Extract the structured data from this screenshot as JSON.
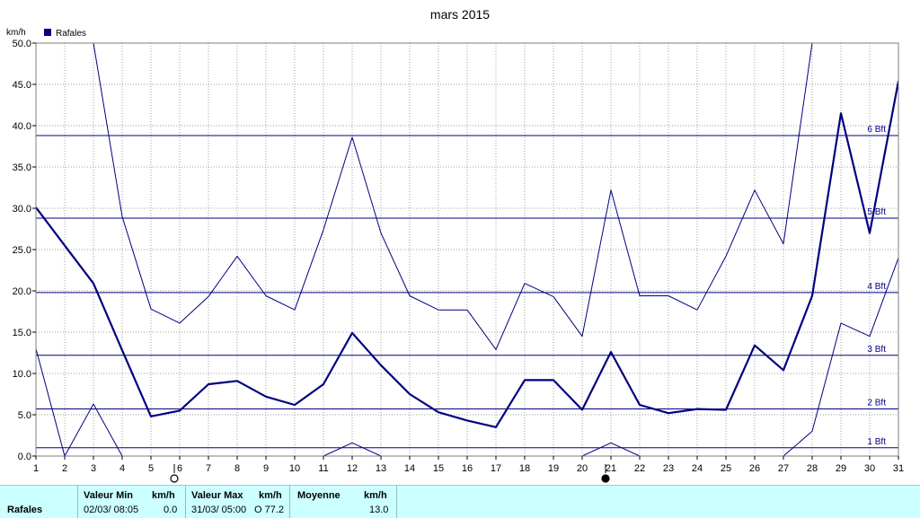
{
  "chart_data": {
    "type": "line",
    "title": "mars 2015",
    "ylabel": "km/h",
    "ylim": [
      0,
      50
    ],
    "yticks": [
      "0.0",
      "5.0",
      "10.0",
      "15.0",
      "20.0",
      "25.0",
      "30.0",
      "35.0",
      "40.0",
      "45.0",
      "50.0"
    ],
    "x": [
      1,
      2,
      3,
      4,
      5,
      6,
      7,
      8,
      9,
      10,
      11,
      12,
      13,
      14,
      15,
      16,
      17,
      18,
      19,
      20,
      21,
      22,
      23,
      24,
      25,
      26,
      27,
      28,
      29,
      30,
      31
    ],
    "legend": {
      "label": "Rafales",
      "position": "top-left",
      "color": "#000080"
    },
    "series": [
      {
        "name": "Rafales",
        "values": [
          30.1,
          25.5,
          20.9,
          12.8,
          4.8,
          5.5,
          8.7,
          9.1,
          7.2,
          6.2,
          8.7,
          14.9,
          11.0,
          7.5,
          5.3,
          4.3,
          3.5,
          9.2,
          9.2,
          5.6,
          12.6,
          6.2,
          5.2,
          5.7,
          5.6,
          13.4,
          10.4,
          19.4,
          41.5,
          27.0,
          45.4
        ]
      },
      {
        "values": [
          13.0,
          0.0,
          6.3,
          0.0,
          null,
          null,
          null,
          null,
          null,
          null,
          0.0,
          1.6,
          0.0,
          null,
          null,
          null,
          null,
          null,
          null,
          0.0,
          1.6,
          0.0,
          null,
          null,
          null,
          null,
          0.0,
          3.0,
          16.1,
          14.5,
          24.0
        ]
      },
      {
        "values": [
          null,
          null,
          50.0,
          29.0,
          17.8,
          16.1,
          19.3,
          24.2,
          19.4,
          17.7,
          27.4,
          38.6,
          27.0,
          19.4,
          17.7,
          17.7,
          12.9,
          20.9,
          19.3,
          14.5,
          32.2,
          19.4,
          19.4,
          17.7,
          24.2,
          32.2,
          25.7,
          50.0,
          null,
          null,
          null
        ]
      }
    ],
    "beaufort": [
      {
        "label": "1 Bft",
        "value": 1.0
      },
      {
        "label": "2 Bft",
        "value": 5.7
      },
      {
        "label": "3 Bft",
        "value": 12.2
      },
      {
        "label": "4 Bft",
        "value": 19.8
      },
      {
        "label": "5 Bft",
        "value": 28.8
      },
      {
        "label": "6 Bft",
        "value": 38.8
      }
    ],
    "moon_markers": [
      {
        "day": 6,
        "phase": "full"
      },
      {
        "day": 21,
        "phase": "new"
      }
    ],
    "grid": true
  },
  "stats": {
    "row_label": "Rafales",
    "min_header": "Valeur Min",
    "min_unit": "km/h",
    "min_date": "02/03/  08:05",
    "min_value": "0.0",
    "max_header": "Valeur Max",
    "max_unit": "km/h",
    "max_date": "31/03/  05:00",
    "max_value": "O 77.2",
    "avg_header": "Moyenne",
    "avg_unit": "km/h",
    "avg_value": "13.0"
  }
}
